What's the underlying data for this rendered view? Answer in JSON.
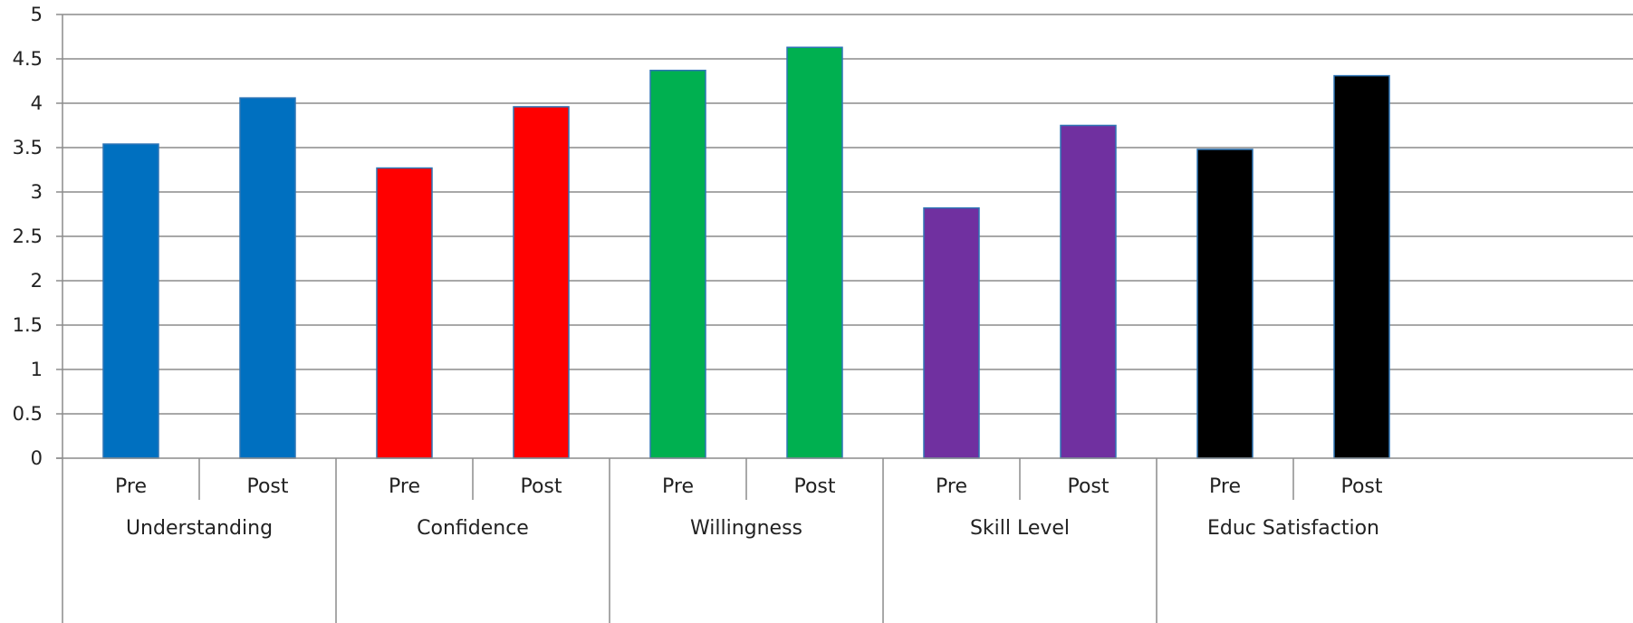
{
  "chart_data": {
    "type": "bar",
    "title": "",
    "xlabel": "",
    "ylabel": "",
    "ylim": [
      0,
      5
    ],
    "yticks": [
      "0",
      "0.5",
      "1",
      "1.5",
      "2",
      "2.5",
      "3",
      "3.5",
      "4",
      "4.5",
      "5"
    ],
    "grid": true,
    "groups": [
      {
        "name": "Understanding",
        "color": "#0070C0",
        "bars": [
          {
            "label": "Pre",
            "value": 3.54
          },
          {
            "label": "Post",
            "value": 4.06
          }
        ]
      },
      {
        "name": "Confidence",
        "color": "#FF0000",
        "bars": [
          {
            "label": "Pre",
            "value": 3.27
          },
          {
            "label": "Post",
            "value": 3.96
          }
        ]
      },
      {
        "name": "Willingness",
        "color": "#00B050",
        "bars": [
          {
            "label": "Pre",
            "value": 4.37
          },
          {
            "label": "Post",
            "value": 4.63
          }
        ]
      },
      {
        "name": "Skill Level",
        "color": "#7030A0",
        "bars": [
          {
            "label": "Pre",
            "value": 2.82
          },
          {
            "label": "Post",
            "value": 3.75
          }
        ]
      },
      {
        "name": "Educ Satisfaction",
        "color": "#000000",
        "bars": [
          {
            "label": "Pre",
            "value": 3.48
          },
          {
            "label": "Post",
            "value": 4.31
          }
        ]
      }
    ]
  }
}
